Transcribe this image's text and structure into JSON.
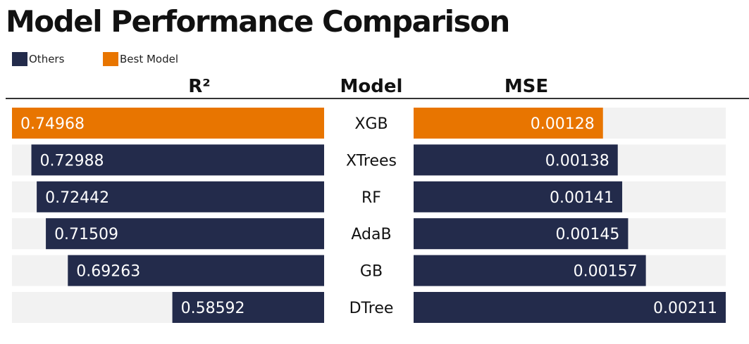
{
  "title": "Model Performance Comparison",
  "legend": [
    {
      "label": "Others",
      "color": "#232b4b"
    },
    {
      "label": "Best Model",
      "color": "#e87500"
    }
  ],
  "headers": {
    "r2": "R²",
    "model": "Model",
    "mse": "MSE"
  },
  "colors": {
    "others": "#232b4b",
    "best": "#e87500",
    "track": "#f2f2f2",
    "bar_text": "#ffffff",
    "model_text": "#111111"
  },
  "chart_data": {
    "type": "bar",
    "categories": [
      "XGB",
      "XTrees",
      "RF",
      "AdaB",
      "GB",
      "DTree"
    ],
    "series": [
      {
        "name": "R²",
        "values": [
          0.74968,
          0.72988,
          0.72442,
          0.71509,
          0.69263,
          0.58592
        ],
        "labels": [
          "0.74968",
          "0.72988",
          "0.72442",
          "0.71509",
          "0.69263",
          "0.58592"
        ]
      },
      {
        "name": "MSE",
        "values": [
          0.00128,
          0.00138,
          0.00141,
          0.00145,
          0.00157,
          0.00211
        ],
        "labels": [
          "0.00128",
          "0.00138",
          "0.00141",
          "0.00145",
          "0.00157",
          "0.00211"
        ]
      }
    ],
    "best": [
      true,
      false,
      false,
      false,
      false,
      false
    ],
    "r2_xlim": [
      0.5,
      0.74968
    ],
    "mse_xlim": [
      0,
      0.00211
    ]
  }
}
